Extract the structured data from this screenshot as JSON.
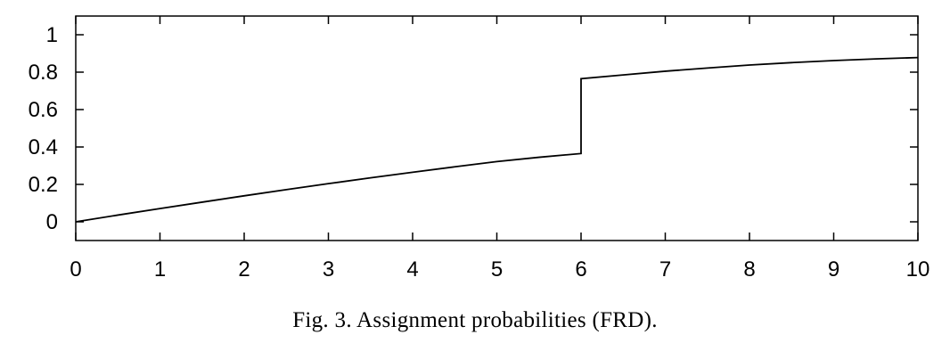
{
  "caption": "Fig. 3.  Assignment probabilities (FRD).",
  "chart_data": {
    "type": "line",
    "title": "",
    "xlabel": "",
    "ylabel": "",
    "xlim": [
      0,
      10
    ],
    "ylim": [
      -0.1,
      1.1
    ],
    "x_ticks": [
      0,
      1,
      2,
      3,
      4,
      5,
      6,
      7,
      8,
      9,
      10
    ],
    "x_tick_labels": [
      "0",
      "1",
      "2",
      "3",
      "4",
      "5",
      "6",
      "7",
      "8",
      "9",
      "10"
    ],
    "y_ticks": [
      0,
      0.2,
      0.4,
      0.6,
      0.8,
      1
    ],
    "y_tick_labels": [
      "0",
      "0.2",
      "0.4",
      "0.6",
      "0.8",
      "1"
    ],
    "grid": false,
    "legend": false,
    "line_color": "#000000",
    "series": [
      {
        "x": [
          0,
          0.5,
          1,
          1.5,
          2,
          2.5,
          3,
          3.5,
          4,
          4.5,
          5,
          5.5,
          6,
          6,
          6.5,
          7,
          7.5,
          8,
          8.5,
          9,
          9.5,
          10
        ],
        "y": [
          0,
          0.036,
          0.071,
          0.105,
          0.139,
          0.172,
          0.204,
          0.235,
          0.265,
          0.294,
          0.322,
          0.345,
          0.365,
          0.765,
          0.785,
          0.805,
          0.822,
          0.838,
          0.851,
          0.862,
          0.871,
          0.878
        ]
      }
    ]
  }
}
